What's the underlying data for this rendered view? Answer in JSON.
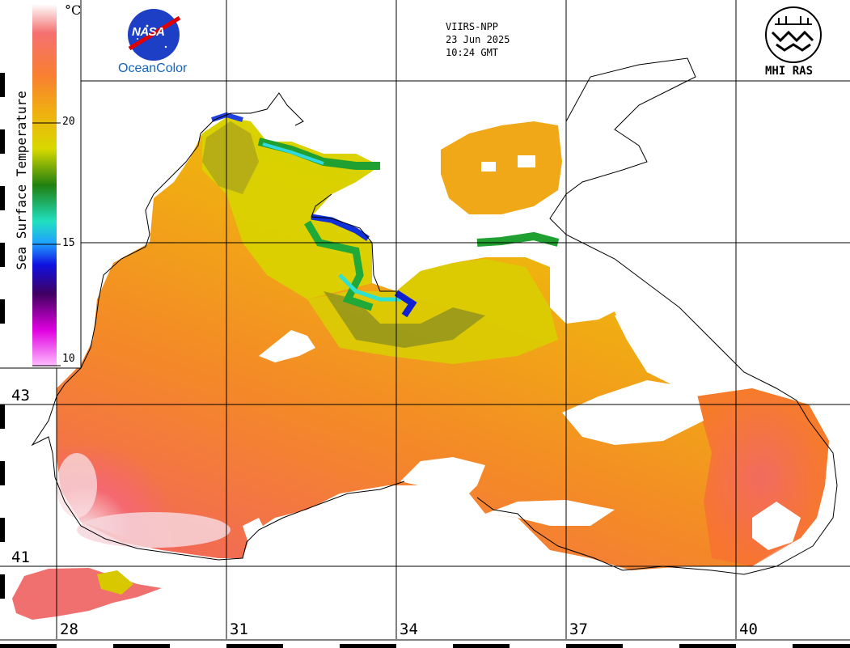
{
  "satellite": {
    "sensor": "VIIRS-NPP",
    "date": "23 Jun 2025",
    "time": "10:24 GMT"
  },
  "logos": {
    "nasa_text": "NASA",
    "oceancolor_label": "OceanColor",
    "mhi_label": "MHI RAS"
  },
  "colorbar": {
    "title": "Sea Surface Temperature",
    "unit": "°C",
    "ticks": [
      "20",
      "15",
      "10"
    ],
    "range": [
      10,
      25
    ]
  },
  "grid": {
    "latitudes": [
      "43",
      "41"
    ],
    "longitudes": [
      "28",
      "31",
      "34",
      "37",
      "40"
    ]
  },
  "palette": {
    "warmest": "#f8f0f0",
    "warm": "#f46060",
    "orange": "#f88a1e",
    "yellow": "#e2dc00",
    "olive": "#8a9020",
    "green": "#18a028",
    "cyan": "#20d8e8",
    "blue": "#1020e0",
    "purple": "#802080"
  }
}
